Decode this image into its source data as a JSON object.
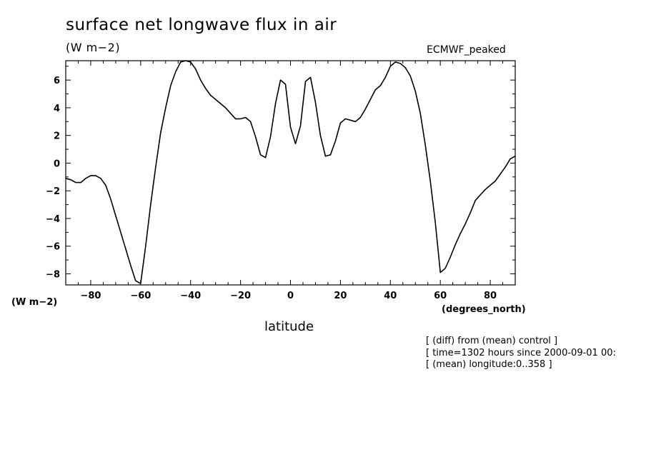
{
  "chart_data": {
    "type": "line",
    "title": "surface net longwave flux in air",
    "units_label": "(W m−2)",
    "dataset_label": "ECMWF_peaked",
    "ylabel": "(W m−2)",
    "xlabel": "latitude",
    "x_units_label": "(degrees_north)",
    "xlim": [
      -90,
      90
    ],
    "ylim": [
      -8.8,
      7.4
    ],
    "x_ticks": [
      -80,
      -60,
      -40,
      -20,
      0,
      20,
      40,
      60,
      80
    ],
    "y_ticks": [
      -8,
      -6,
      -4,
      -2,
      0,
      2,
      4,
      6
    ],
    "grid": false,
    "series": [
      {
        "x": [
          -90,
          -88,
          -86,
          -84,
          -82,
          -80,
          -78,
          -76,
          -74,
          -72,
          -70,
          -68,
          -66,
          -64,
          -62,
          -60,
          -58,
          -56,
          -54,
          -52,
          -50,
          -48,
          -46,
          -44,
          -42,
          -40,
          -38,
          -36,
          -34,
          -32,
          -30,
          -28,
          -26,
          -24,
          -22,
          -20,
          -18,
          -16,
          -14,
          -12,
          -10,
          -8,
          -6,
          -4,
          -2,
          0,
          2,
          4,
          6,
          8,
          10,
          12,
          14,
          16,
          18,
          20,
          22,
          24,
          26,
          28,
          30,
          32,
          34,
          36,
          38,
          40,
          42,
          44,
          46,
          48,
          50,
          52,
          54,
          56,
          58,
          60,
          62,
          64,
          66,
          68,
          70,
          72,
          74,
          76,
          78,
          80,
          82,
          84,
          86,
          88,
          90
        ],
        "y": [
          -1.1,
          -1.2,
          -1.4,
          -1.4,
          -1.1,
          -0.9,
          -0.9,
          -1.1,
          -1.6,
          -2.6,
          -3.8,
          -5.0,
          -6.2,
          -7.4,
          -8.5,
          -8.7,
          -6.0,
          -3.0,
          -0.3,
          2.2,
          4.0,
          5.6,
          6.6,
          7.3,
          7.4,
          7.3,
          6.8,
          6.0,
          5.4,
          4.9,
          4.6,
          4.3,
          4.0,
          3.6,
          3.2,
          3.2,
          3.3,
          3.0,
          1.9,
          0.6,
          0.4,
          1.9,
          4.3,
          6.0,
          5.7,
          2.6,
          1.4,
          2.7,
          5.9,
          6.2,
          4.4,
          2.0,
          0.5,
          0.6,
          1.6,
          2.9,
          3.2,
          3.1,
          3.0,
          3.3,
          3.9,
          4.6,
          5.3,
          5.6,
          6.2,
          7.0,
          7.3,
          7.2,
          6.9,
          6.3,
          5.2,
          3.6,
          1.3,
          -1.3,
          -4.3,
          -7.9,
          -7.6,
          -6.8,
          -5.9,
          -5.1,
          -4.4,
          -3.6,
          -2.7,
          -2.3,
          -1.9,
          -1.6,
          -1.3,
          -0.8,
          -0.3,
          0.3,
          0.5
        ]
      }
    ]
  },
  "footer": {
    "line1": "[ (diff) from (mean) control ]",
    "line2": "[ time=1302 hours since 2000-09-01 00:",
    "line3": "[ (mean) longitude:0..358 ]"
  }
}
